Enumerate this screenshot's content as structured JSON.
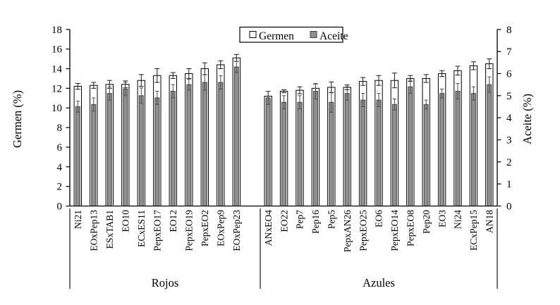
{
  "chart_data": {
    "type": "bar",
    "title": "",
    "grid": false,
    "legend": {
      "position": "top-center",
      "items": [
        {
          "label": "Germen",
          "fill": "#ffffff",
          "border": "#000000"
        },
        {
          "label": "Aceite",
          "fill": "#8f8f8f",
          "border": "#404040"
        }
      ]
    },
    "left_axis": {
      "label": "Germen (%)",
      "min": 0,
      "max": 18,
      "tick_step": 2,
      "ticks": [
        "0",
        "2",
        "4",
        "6",
        "8",
        "10",
        "12",
        "14",
        "16",
        "18"
      ]
    },
    "right_axis": {
      "label": "Aceite (%)",
      "min": 0,
      "max": 8,
      "tick_step": 1,
      "ticks": [
        "0",
        "1",
        "2",
        "3",
        "4",
        "5",
        "6",
        "7",
        "8"
      ]
    },
    "series": [
      {
        "name": "Germen",
        "axis": "left"
      },
      {
        "name": "Aceite",
        "axis": "right"
      }
    ],
    "groups": [
      {
        "name": "Rojos",
        "categories": [
          "Ni21",
          "EOxPep13",
          "ESxTAB1",
          "EO10",
          "ECxES11",
          "PepxEO17",
          "EO12",
          "PepxEO19",
          "PepxEO2",
          "EOxPep9",
          "EOxPep23"
        ],
        "germen": [
          12.2,
          12.3,
          12.4,
          12.4,
          12.8,
          13.3,
          13.3,
          13.5,
          14.0,
          14.4,
          15.1
        ],
        "germen_err": [
          0.3,
          0.3,
          0.4,
          0.35,
          0.6,
          0.7,
          0.3,
          0.5,
          0.6,
          0.4,
          0.35
        ],
        "aceite": [
          4.5,
          4.6,
          5.1,
          5.3,
          5.0,
          4.9,
          5.2,
          5.5,
          5.6,
          5.6,
          6.3
        ],
        "aceite_err": [
          0.25,
          0.3,
          0.3,
          0.3,
          0.35,
          0.3,
          0.3,
          0.25,
          0.35,
          0.3,
          0.25
        ]
      },
      {
        "name": "Azules",
        "categories": [
          "ANxEO4",
          "EO22",
          "Pep7",
          "Pep16",
          "Pep5",
          "PepxAN26",
          "PepxEO25",
          "EO6",
          "PepxEO14",
          "PepxEO8",
          "Pep20",
          "EO3",
          "Ni24",
          "ECxPep15",
          "AN18"
        ],
        "germen": [
          11.2,
          11.7,
          11.8,
          12.0,
          12.1,
          12.1,
          12.7,
          12.8,
          12.8,
          13.0,
          13.0,
          13.5,
          13.8,
          14.3,
          14.5
        ],
        "germen_err": [
          0.5,
          0.15,
          0.35,
          0.45,
          0.55,
          0.25,
          0.4,
          0.5,
          0.75,
          0.3,
          0.4,
          0.3,
          0.45,
          0.4,
          0.5
        ],
        "aceite": [
          4.9,
          4.7,
          4.7,
          5.2,
          4.7,
          5.1,
          4.8,
          4.8,
          4.6,
          5.4,
          4.6,
          5.1,
          5.2,
          5.1,
          5.5
        ],
        "aceite_err": [
          0.3,
          0.3,
          0.3,
          0.35,
          0.45,
          0.3,
          0.3,
          0.3,
          0.25,
          0.3,
          0.2,
          0.2,
          0.35,
          0.3,
          0.35
        ]
      }
    ]
  },
  "colors": {
    "background": "#ffffff",
    "axis": "#000000",
    "germen_fill": "#ffffff",
    "germen_border": "#000000",
    "germen_error": "#1a1a1a",
    "aceite_fill": "#8f8f8f",
    "aceite_border": "#404040",
    "aceite_error": "#4d4d4d"
  }
}
